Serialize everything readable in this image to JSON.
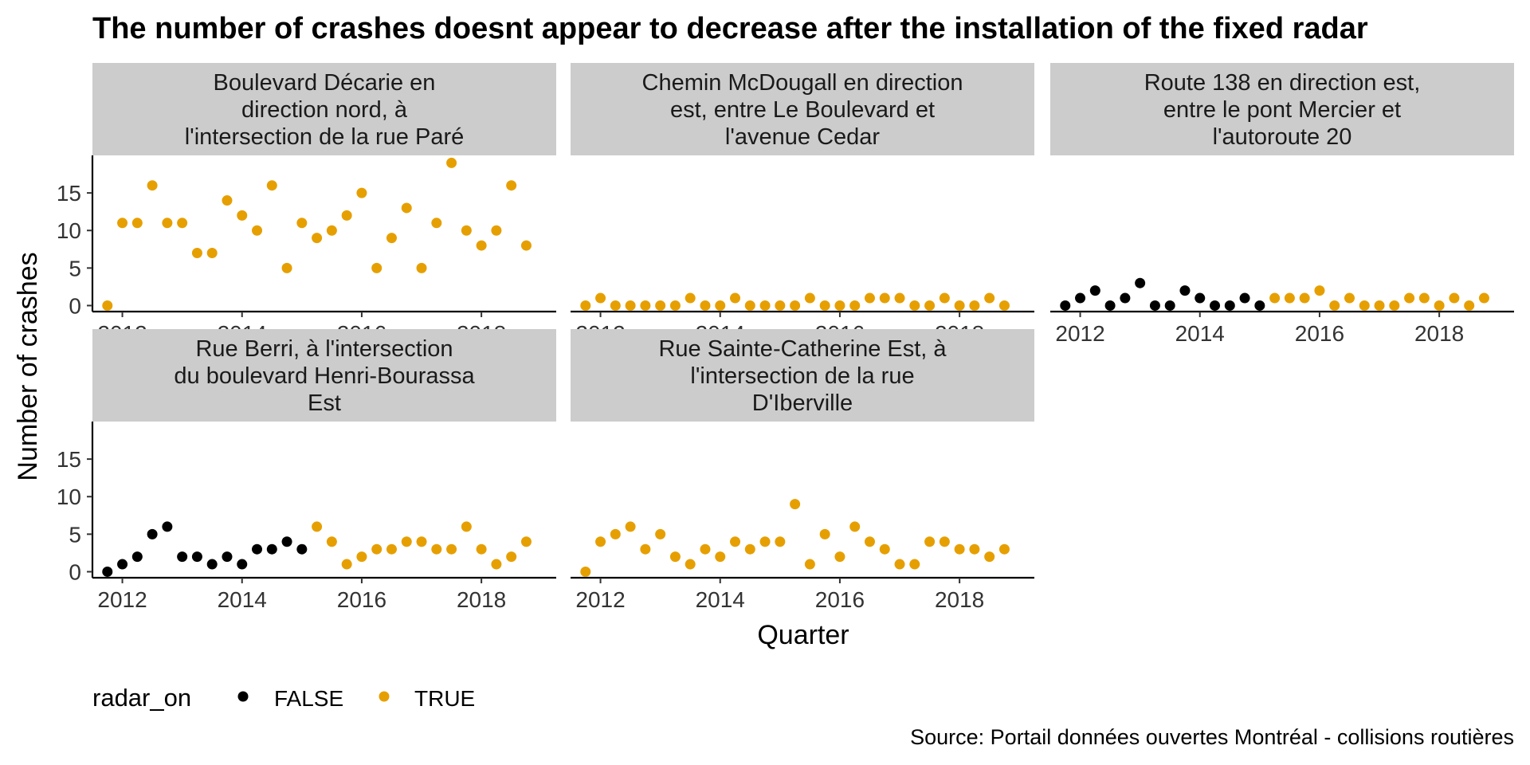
{
  "chart_data": {
    "type": "scatter",
    "title": "The number of crashes doesnt appear to decrease after the installation of the fixed radar",
    "xlabel": "Quarter",
    "ylabel": "Number of crashes",
    "caption": "Source:  Portail données ouvertes Montréal - collisions routières",
    "xlim": [
      2011.5,
      2019.25
    ],
    "ylim": [
      -0.8,
      20
    ],
    "x_ticks": [
      2012,
      2014,
      2016,
      2018
    ],
    "y_ticks": [
      0,
      5,
      10,
      15
    ],
    "legend": {
      "title": "radar_on",
      "position": "bottom-left",
      "items": [
        {
          "label": "FALSE",
          "color": "#000000"
        },
        {
          "label": "TRUE",
          "color": "#E69F00"
        }
      ]
    },
    "grid": false,
    "panels": [
      {
        "strip": [
          "Boulevard Décarie en",
          "direction nord, à",
          "l'intersection de la rue Paré"
        ],
        "x": [
          2011.75,
          2012.0,
          2012.25,
          2012.5,
          2012.75,
          2013.0,
          2013.25,
          2013.5,
          2013.75,
          2014.0,
          2014.25,
          2014.5,
          2014.75,
          2015.0,
          2015.25,
          2015.5,
          2015.75,
          2016.0,
          2016.25,
          2016.5,
          2016.75,
          2017.0,
          2017.25,
          2017.5,
          2017.75,
          2018.0,
          2018.25,
          2018.5,
          2018.75
        ],
        "y": [
          0,
          11,
          11,
          16,
          11,
          11,
          7,
          7,
          14,
          12,
          10,
          16,
          5,
          11,
          9,
          10,
          12,
          15,
          5,
          9,
          13,
          5,
          11,
          19,
          10,
          8,
          10,
          16,
          8
        ],
        "radar_on": [
          true,
          true,
          true,
          true,
          true,
          true,
          true,
          true,
          true,
          true,
          true,
          true,
          true,
          true,
          true,
          true,
          true,
          true,
          true,
          true,
          true,
          true,
          true,
          true,
          true,
          true,
          true,
          true,
          true
        ]
      },
      {
        "strip": [
          "Chemin McDougall en direction",
          "est, entre Le Boulevard et",
          "l'avenue Cedar"
        ],
        "x": [
          2011.75,
          2012.0,
          2012.25,
          2012.5,
          2012.75,
          2013.0,
          2013.25,
          2013.5,
          2013.75,
          2014.0,
          2014.25,
          2014.5,
          2014.75,
          2015.0,
          2015.25,
          2015.5,
          2015.75,
          2016.0,
          2016.25,
          2016.5,
          2016.75,
          2017.0,
          2017.25,
          2017.5,
          2017.75,
          2018.0,
          2018.25,
          2018.5,
          2018.75
        ],
        "y": [
          0,
          1,
          0,
          0,
          0,
          0,
          0,
          1,
          0,
          0,
          1,
          0,
          0,
          0,
          0,
          1,
          0,
          0,
          0,
          1,
          1,
          1,
          0,
          0,
          1,
          0,
          0,
          1,
          0
        ],
        "radar_on": [
          true,
          true,
          true,
          true,
          true,
          true,
          true,
          true,
          true,
          true,
          true,
          true,
          true,
          true,
          true,
          true,
          true,
          true,
          true,
          true,
          true,
          true,
          true,
          true,
          true,
          true,
          true,
          true,
          true
        ]
      },
      {
        "strip": [
          "Route 138 en direction est,",
          "entre le pont Mercier et",
          "l'autoroute 20"
        ],
        "x": [
          2011.75,
          2012.0,
          2012.25,
          2012.5,
          2012.75,
          2013.0,
          2013.25,
          2013.5,
          2013.75,
          2014.0,
          2014.25,
          2014.5,
          2014.75,
          2015.0,
          2015.25,
          2015.5,
          2015.75,
          2016.0,
          2016.25,
          2016.5,
          2016.75,
          2017.0,
          2017.25,
          2017.5,
          2017.75,
          2018.0,
          2018.25,
          2018.5,
          2018.75
        ],
        "y": [
          0,
          1,
          2,
          0,
          1,
          3,
          0,
          0,
          2,
          1,
          0,
          0,
          1,
          0,
          1,
          1,
          1,
          2,
          0,
          1,
          0,
          0,
          0,
          1,
          1,
          0,
          1,
          0,
          1
        ],
        "radar_on": [
          false,
          false,
          false,
          false,
          false,
          false,
          false,
          false,
          false,
          false,
          false,
          false,
          false,
          false,
          true,
          true,
          true,
          true,
          true,
          true,
          true,
          true,
          true,
          true,
          true,
          true,
          true,
          true,
          true
        ]
      },
      {
        "strip": [
          "Rue Berri, à l'intersection",
          "du boulevard Henri-Bourassa",
          "Est"
        ],
        "x": [
          2011.75,
          2012.0,
          2012.25,
          2012.5,
          2012.75,
          2013.0,
          2013.25,
          2013.5,
          2013.75,
          2014.0,
          2014.25,
          2014.5,
          2014.75,
          2015.0,
          2015.25,
          2015.5,
          2015.75,
          2016.0,
          2016.25,
          2016.5,
          2016.75,
          2017.0,
          2017.25,
          2017.5,
          2017.75,
          2018.0,
          2018.25,
          2018.5,
          2018.75
        ],
        "y": [
          0,
          1,
          2,
          5,
          6,
          2,
          2,
          1,
          2,
          1,
          3,
          3,
          4,
          3,
          6,
          4,
          1,
          2,
          3,
          3,
          4,
          4,
          3,
          3,
          6,
          3,
          1,
          2,
          4
        ],
        "radar_on": [
          false,
          false,
          false,
          false,
          false,
          false,
          false,
          false,
          false,
          false,
          false,
          false,
          false,
          false,
          true,
          true,
          true,
          true,
          true,
          true,
          true,
          true,
          true,
          true,
          true,
          true,
          true,
          true,
          true
        ]
      },
      {
        "strip": [
          "Rue Sainte-Catherine Est, à",
          "l'intersection de la rue",
          "D'Iberville"
        ],
        "x": [
          2011.75,
          2012.0,
          2012.25,
          2012.5,
          2012.75,
          2013.0,
          2013.25,
          2013.5,
          2013.75,
          2014.0,
          2014.25,
          2014.5,
          2014.75,
          2015.0,
          2015.25,
          2015.5,
          2015.75,
          2016.0,
          2016.25,
          2016.5,
          2016.75,
          2017.0,
          2017.25,
          2017.5,
          2017.75,
          2018.0,
          2018.25,
          2018.5,
          2018.75
        ],
        "y": [
          0,
          4,
          5,
          6,
          3,
          5,
          2,
          1,
          3,
          2,
          4,
          3,
          4,
          4,
          9,
          1,
          5,
          2,
          6,
          4,
          3,
          1,
          1,
          4,
          4,
          3,
          3,
          2,
          3
        ],
        "radar_on": [
          true,
          true,
          true,
          true,
          true,
          true,
          true,
          true,
          true,
          true,
          true,
          true,
          true,
          true,
          true,
          true,
          true,
          true,
          true,
          true,
          true,
          true,
          true,
          true,
          true,
          true,
          true,
          true,
          true
        ]
      }
    ]
  }
}
